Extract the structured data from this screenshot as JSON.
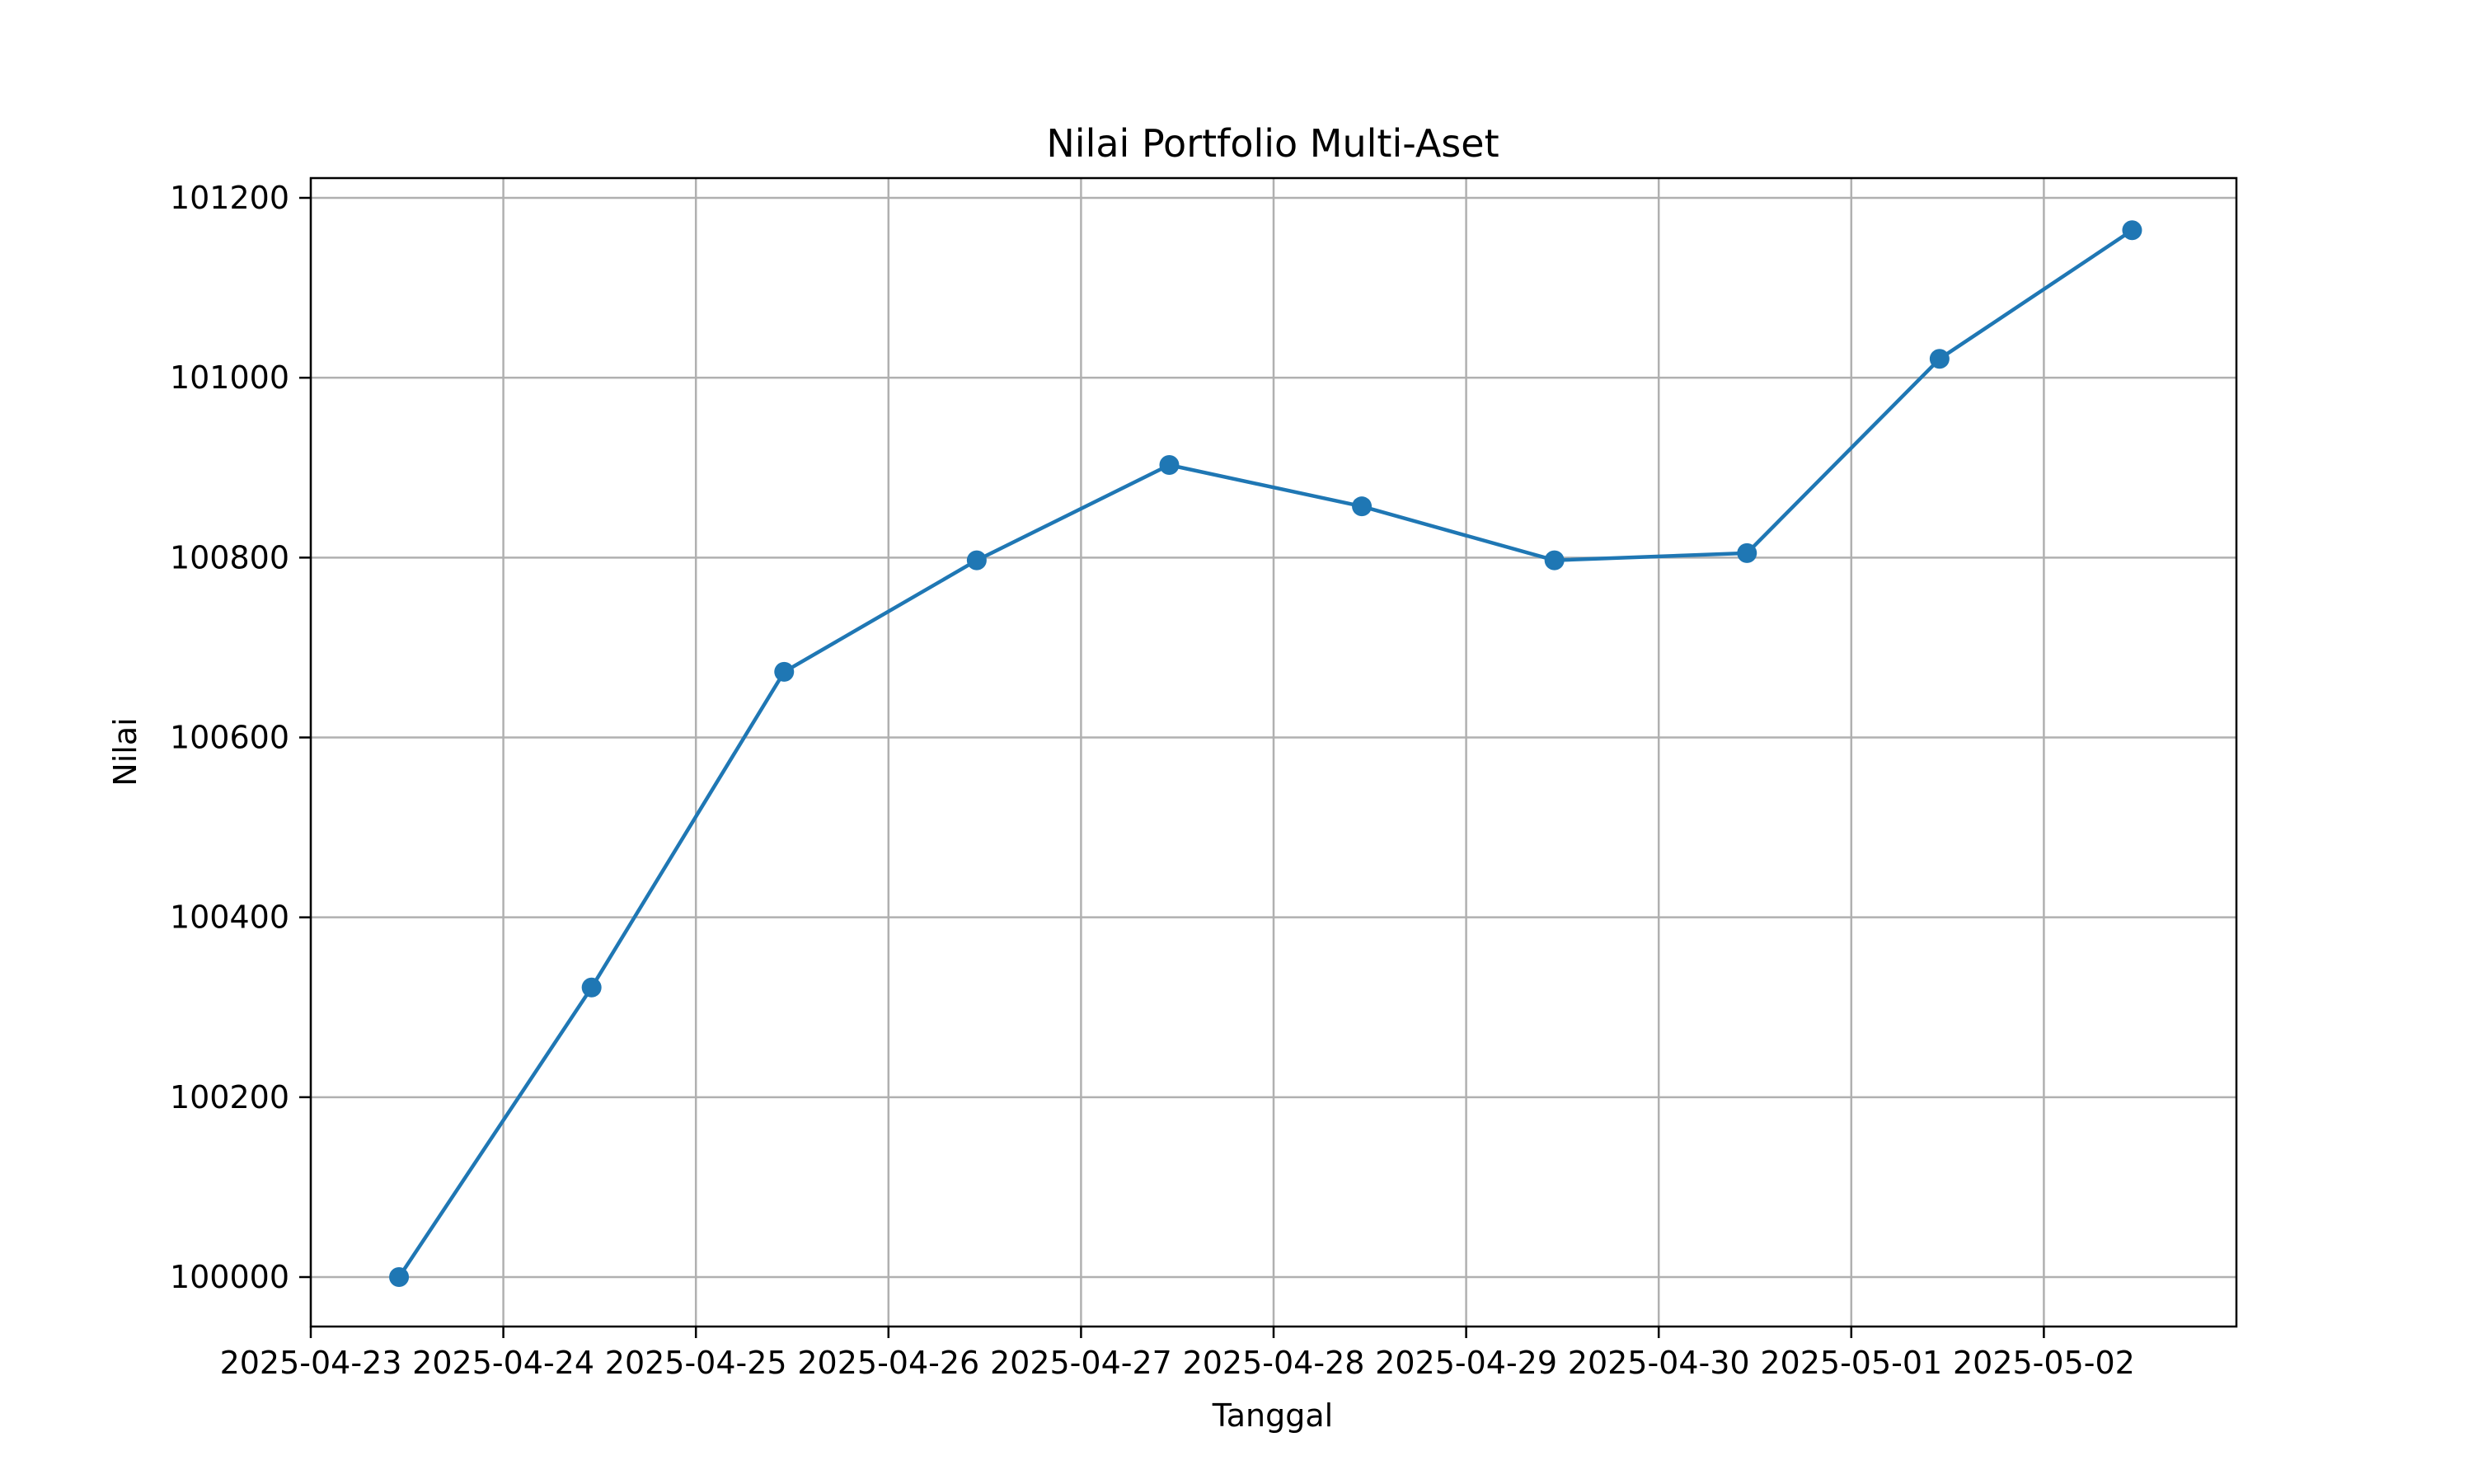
{
  "chart_data": {
    "type": "line",
    "title": "Nilai Portfolio Multi-Aset",
    "xlabel": "Tanggal",
    "ylabel": "Nilai",
    "x_tick_labels": [
      "2025-04-23",
      "2025-04-24",
      "2025-04-25",
      "2025-04-26",
      "2025-04-27",
      "2025-04-28",
      "2025-04-29",
      "2025-04-30",
      "2025-05-01",
      "2025-05-02"
    ],
    "y_tick_labels": [
      "100000",
      "100200",
      "100400",
      "100600",
      "100800",
      "101000",
      "101200"
    ],
    "y_ticks": [
      100000,
      100200,
      100400,
      100600,
      100800,
      101000,
      101200
    ],
    "xlim": [
      "2025-04-23",
      "2025-05-03"
    ],
    "ylim": [
      99945,
      101222
    ],
    "grid": true,
    "line_color": "#1f77b4",
    "series": [
      {
        "x": [
          "2025-04-23 11:00",
          "2025-04-24 11:00",
          "2025-04-25 11:00",
          "2025-04-26 11:00",
          "2025-04-27 11:00",
          "2025-04-28 11:00",
          "2025-04-29 11:00",
          "2025-04-30 11:00",
          "2025-05-01 11:00",
          "2025-05-02 11:00"
        ],
        "values": [
          100000,
          100322,
          100673,
          100797,
          100903,
          100857,
          100797,
          100805,
          101021,
          101164
        ]
      }
    ]
  }
}
